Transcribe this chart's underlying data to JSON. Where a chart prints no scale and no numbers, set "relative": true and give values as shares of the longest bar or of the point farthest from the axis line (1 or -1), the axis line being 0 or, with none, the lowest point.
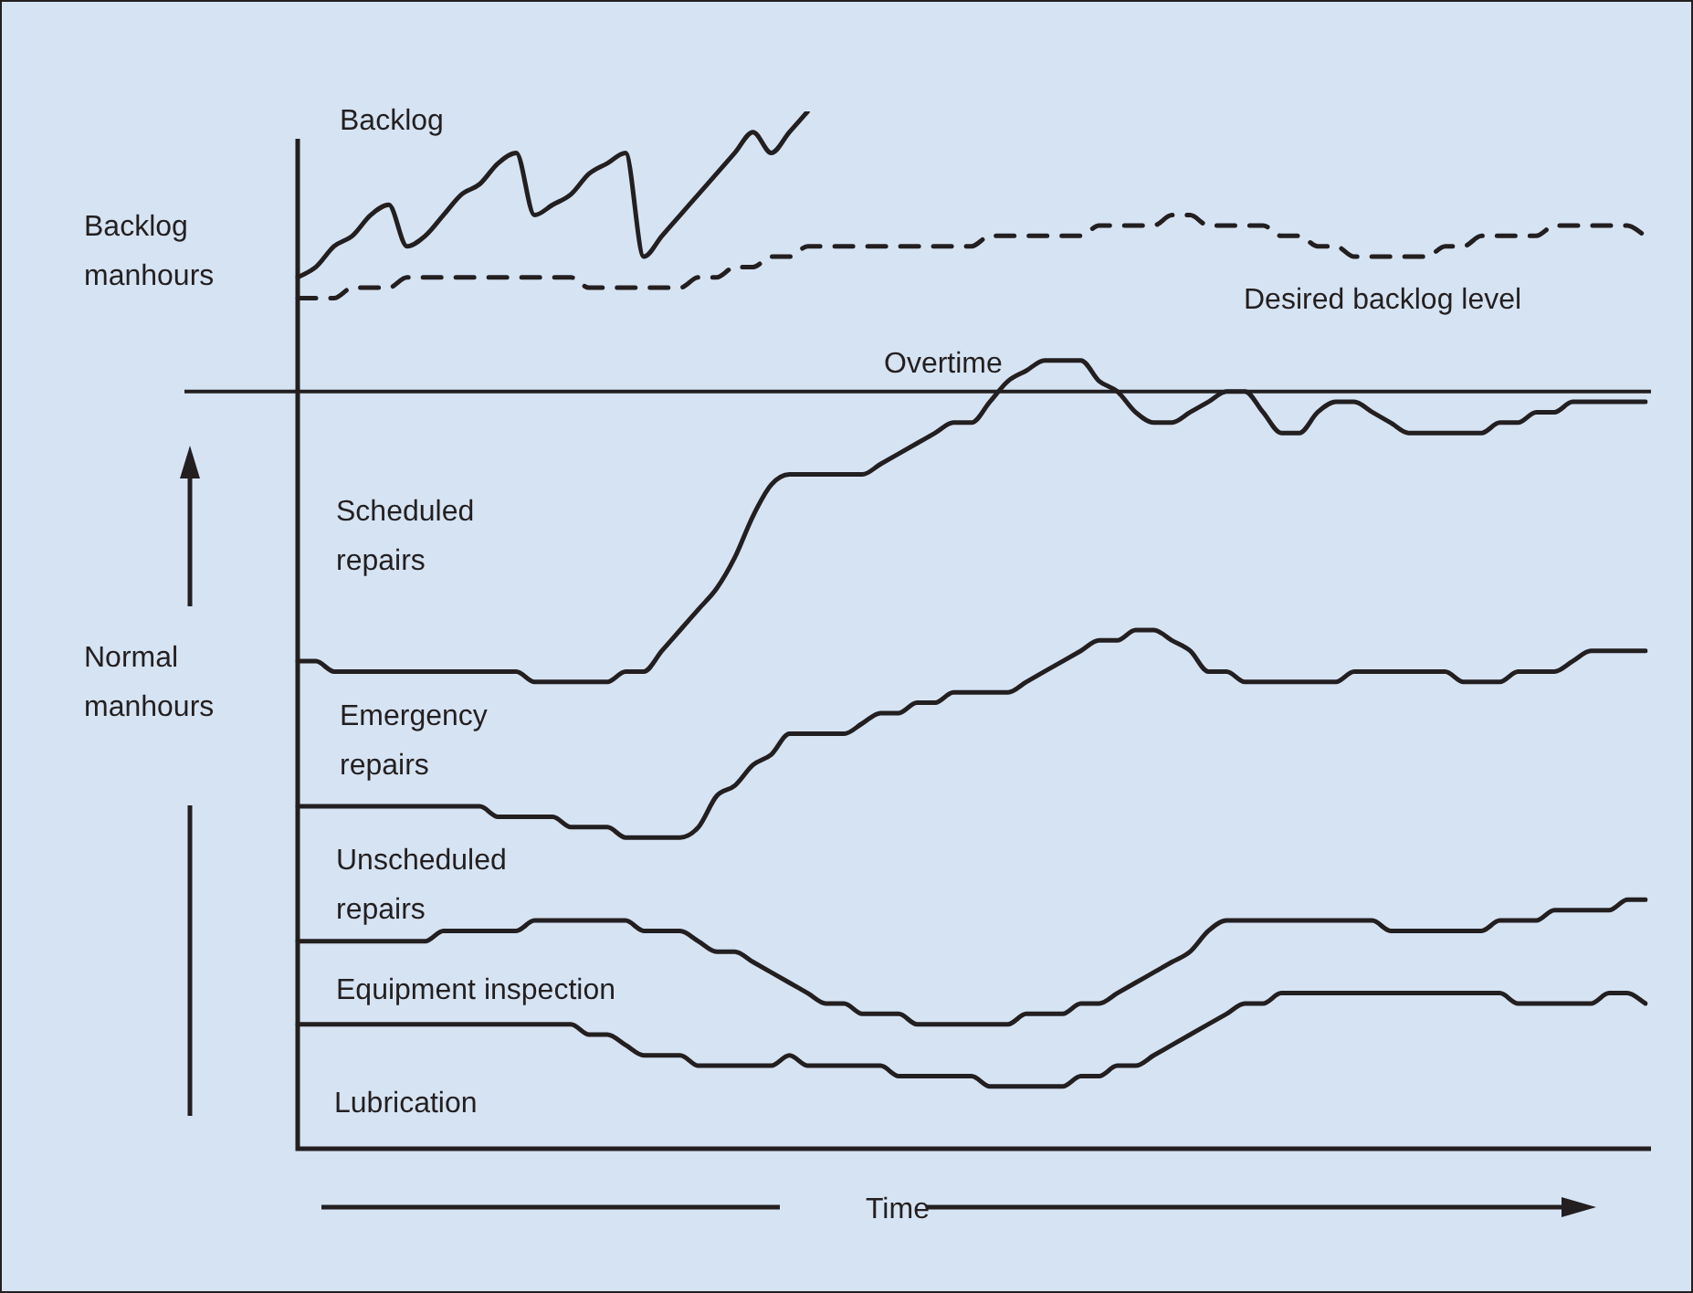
{
  "chart_data": {
    "type": "line",
    "relative": true,
    "marker": "none",
    "categories": [
      null,
      null,
      null,
      null,
      null,
      null,
      null,
      null,
      null,
      null,
      null,
      null,
      null,
      null,
      null,
      null,
      null,
      null,
      null,
      null,
      null,
      null,
      null,
      null,
      null,
      null,
      null,
      null,
      null,
      null,
      null,
      null,
      null,
      null,
      null,
      null,
      null,
      null,
      null,
      null,
      null,
      null,
      null,
      null,
      null,
      null,
      null,
      null,
      null,
      null,
      null,
      null,
      null,
      null,
      null,
      null,
      null,
      null,
      null,
      null,
      null,
      null,
      null,
      null,
      null,
      null,
      null,
      null,
      null,
      null,
      null,
      null,
      null,
      null,
      null
    ],
    "ylabel": "Normal manhours",
    "xlabel": "Time",
    "annotations": [
      "Backlog manhours",
      "Overtime",
      "Scheduled repairs",
      "Emergency repairs",
      "Unscheduled repairs",
      "Equipment inspection",
      "Lubrication"
    ],
    "ref_lines": [
      {
        "axis": "y",
        "value": 0.73,
        "color": "#231f20"
      }
    ],
    "series": [
      {
        "name": "Backlog",
        "color": "#231f20",
        "values": [
          0.84,
          0.85,
          0.87,
          0.88,
          0.9,
          0.91,
          0.87,
          0.88,
          0.9,
          0.92,
          0.93,
          0.95,
          0.96,
          0.9,
          0.91,
          0.92,
          0.94,
          0.95,
          0.96,
          0.86,
          0.88,
          0.9,
          0.92,
          0.94,
          0.96,
          0.98,
          0.96,
          0.98,
          1.0,
          null,
          null,
          null,
          null,
          null,
          null,
          null,
          null,
          null,
          null,
          null,
          null,
          null,
          null,
          null,
          null,
          null,
          null,
          null,
          null,
          null,
          null,
          null,
          null,
          null,
          null,
          null,
          null,
          null,
          null,
          null,
          null,
          null,
          null,
          null,
          null,
          null,
          null,
          null,
          null,
          null,
          null,
          null,
          null,
          null,
          null
        ]
      },
      {
        "name": "Desired backlog level",
        "color": "#231f20",
        "line_style": "dashed",
        "values": [
          0.82,
          0.82,
          0.82,
          0.83,
          0.83,
          0.83,
          0.84,
          0.84,
          0.84,
          0.84,
          0.84,
          0.84,
          0.84,
          0.84,
          0.84,
          0.84,
          0.83,
          0.83,
          0.83,
          0.83,
          0.83,
          0.83,
          0.84,
          0.84,
          0.85,
          0.85,
          0.86,
          0.86,
          0.87,
          0.87,
          0.87,
          0.87,
          0.87,
          0.87,
          0.87,
          0.87,
          0.87,
          0.87,
          0.88,
          0.88,
          0.88,
          0.88,
          0.88,
          0.88,
          0.89,
          0.89,
          0.89,
          0.89,
          0.9,
          0.9,
          0.89,
          0.89,
          0.89,
          0.89,
          0.88,
          0.88,
          0.87,
          0.87,
          0.86,
          0.86,
          0.86,
          0.86,
          0.86,
          0.87,
          0.87,
          0.88,
          0.88,
          0.88,
          0.88,
          0.89,
          0.89,
          0.89,
          0.89,
          0.89,
          0.88
        ]
      },
      {
        "color": "#231f20",
        "values": [
          0.47,
          0.47,
          0.46,
          0.46,
          0.46,
          0.46,
          0.46,
          0.46,
          0.46,
          0.46,
          0.46,
          0.46,
          0.46,
          0.45,
          0.45,
          0.45,
          0.45,
          0.45,
          0.46,
          0.46,
          0.48,
          0.5,
          0.52,
          0.54,
          0.57,
          0.61,
          0.64,
          0.65,
          0.65,
          0.65,
          0.65,
          0.65,
          0.66,
          0.67,
          0.68,
          0.69,
          0.7,
          0.7,
          0.72,
          0.74,
          0.75,
          0.76,
          0.76,
          0.76,
          0.74,
          0.73,
          0.71,
          0.7,
          0.7,
          0.71,
          0.72,
          0.73,
          0.73,
          0.71,
          0.69,
          0.69,
          0.71,
          0.72,
          0.72,
          0.71,
          0.7,
          0.69,
          0.69,
          0.69,
          0.69,
          0.69,
          0.7,
          0.7,
          0.71,
          0.71,
          0.72,
          0.72,
          0.72,
          0.72,
          0.72
        ]
      },
      {
        "color": "#231f20",
        "values": [
          0.33,
          0.33,
          0.33,
          0.33,
          0.33,
          0.33,
          0.33,
          0.33,
          0.33,
          0.33,
          0.33,
          0.32,
          0.32,
          0.32,
          0.32,
          0.31,
          0.31,
          0.31,
          0.3,
          0.3,
          0.3,
          0.3,
          0.31,
          0.34,
          0.35,
          0.37,
          0.38,
          0.4,
          0.4,
          0.4,
          0.4,
          0.41,
          0.42,
          0.42,
          0.43,
          0.43,
          0.44,
          0.44,
          0.44,
          0.44,
          0.45,
          0.46,
          0.47,
          0.48,
          0.49,
          0.49,
          0.5,
          0.5,
          0.49,
          0.48,
          0.46,
          0.46,
          0.45,
          0.45,
          0.45,
          0.45,
          0.45,
          0.45,
          0.46,
          0.46,
          0.46,
          0.46,
          0.46,
          0.46,
          0.45,
          0.45,
          0.45,
          0.46,
          0.46,
          0.46,
          0.47,
          0.48,
          0.48,
          0.48,
          0.48
        ]
      },
      {
        "color": "#231f20",
        "values": [
          0.2,
          0.2,
          0.2,
          0.2,
          0.2,
          0.2,
          0.2,
          0.2,
          0.21,
          0.21,
          0.21,
          0.21,
          0.21,
          0.22,
          0.22,
          0.22,
          0.22,
          0.22,
          0.22,
          0.21,
          0.21,
          0.21,
          0.2,
          0.19,
          0.19,
          0.18,
          0.17,
          0.16,
          0.15,
          0.14,
          0.14,
          0.13,
          0.13,
          0.13,
          0.12,
          0.12,
          0.12,
          0.12,
          0.12,
          0.12,
          0.13,
          0.13,
          0.13,
          0.14,
          0.14,
          0.15,
          0.16,
          0.17,
          0.18,
          0.19,
          0.21,
          0.22,
          0.22,
          0.22,
          0.22,
          0.22,
          0.22,
          0.22,
          0.22,
          0.22,
          0.21,
          0.21,
          0.21,
          0.21,
          0.21,
          0.21,
          0.22,
          0.22,
          0.22,
          0.23,
          0.23,
          0.23,
          0.23,
          0.24,
          0.24
        ]
      },
      {
        "color": "#231f20",
        "values": [
          0.12,
          0.12,
          0.12,
          0.12,
          0.12,
          0.12,
          0.12,
          0.12,
          0.12,
          0.12,
          0.12,
          0.12,
          0.12,
          0.12,
          0.12,
          0.12,
          0.11,
          0.11,
          0.1,
          0.09,
          0.09,
          0.09,
          0.08,
          0.08,
          0.08,
          0.08,
          0.08,
          0.09,
          0.08,
          0.08,
          0.08,
          0.08,
          0.08,
          0.07,
          0.07,
          0.07,
          0.07,
          0.07,
          0.06,
          0.06,
          0.06,
          0.06,
          0.06,
          0.07,
          0.07,
          0.08,
          0.08,
          0.09,
          0.1,
          0.11,
          0.12,
          0.13,
          0.14,
          0.14,
          0.15,
          0.15,
          0.15,
          0.15,
          0.15,
          0.15,
          0.15,
          0.15,
          0.15,
          0.15,
          0.15,
          0.15,
          0.15,
          0.14,
          0.14,
          0.14,
          0.14,
          0.14,
          0.15,
          0.15,
          0.14
        ]
      }
    ]
  }
}
